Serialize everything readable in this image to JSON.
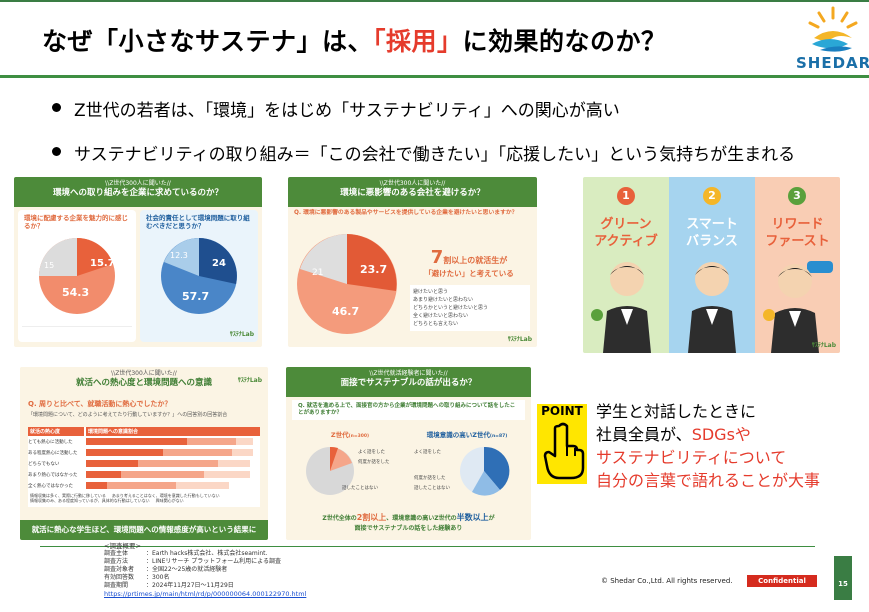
{
  "title": {
    "part1": "なぜ「小さなサステナ」は、",
    "highlight": "「採用」",
    "part2": "に効果的なのか？"
  },
  "logo": {
    "text": "SHEDAR"
  },
  "bullets": [
    "Z世代の若者は、「環境」をはじめ「サステナビリティ」への関心が高い",
    "サステナビリティの取り組み＝「この会社で働きたい」「応援したい」という気持ちが生まれる"
  ],
  "panel1": {
    "kicker": "\\\\Z世代300人に聞いた//",
    "title": "環境への取り組みを企業に求めているのか？",
    "left_q": "環境に配慮する企業を魅力的に感じるか？",
    "right_q": "社会的責任として環境問題に取り組むべきだと思うか？",
    "left_values": [
      "15.7",
      "54.3",
      "15"
    ],
    "right_values": [
      "24",
      "57.7",
      "12.3"
    ],
    "brand": "ｻｽﾃﾅLab"
  },
  "panel2": {
    "kicker": "\\\\Z世代300人に聞いた//",
    "title": "環境に悪影響のある会社を避けるか？",
    "question": "Q. 環境に悪影響のある製品やサービスを提供している企業を避けたいと思いますか？",
    "callout_num": "7",
    "callout_a": "割以上の就活生が",
    "callout_b": "「避けたい」と考えている",
    "values": [
      "23.7",
      "46.7",
      "21"
    ],
    "legend": [
      "避けたいと思う",
      "あまり避けたいと思わない",
      "どちらかというと避けたいと思う",
      "全く避けたいと思わない",
      "どちらとも言えない"
    ],
    "brand": "ｻｽﾃﾅLab"
  },
  "panel3": {
    "cards": [
      {
        "num": "1",
        "line1": "グリーン",
        "line2": "アクティブ"
      },
      {
        "num": "2",
        "line1": "スマート",
        "line2": "バランス"
      },
      {
        "num": "3",
        "line1": "リワード",
        "line2": "ファースト"
      }
    ],
    "brand": "ｻｽﾃﾅLab"
  },
  "panel4": {
    "kicker": "\\\\Z世代300人に聞いた//",
    "title": "就活への熱心度と環境問題への意識",
    "question": "Q. 周りと比べて、就職活動に熱心でしたか？",
    "sub": "「環境問題について、どのように考えてたり行動していますか？」への回答別の回答割合",
    "col_a": "就活の熱心度",
    "col_b": "環境問題への意識割合",
    "rows": [
      "とても熱心に活動した",
      "ある程度熱心に活動した",
      "どちらでもない",
      "あまり熱心ではなかった",
      "全く熱心ではなかった"
    ],
    "legend": [
      "情報収集は多く、実際に行動に移している",
      "あまり考えることはなく、環境を意識した行動もしていない",
      "情報収集のみ、ある程度知っているが、具体的な行動はしていない",
      "興味関心がない"
    ],
    "footer": "就活に熱心な学生ほど、環境問題への情報感度が高いという結果に",
    "brand": "ｻｽﾃﾅLab"
  },
  "panel5": {
    "kicker": "\\\\Z世代就活経験者に聞いた//",
    "title": "面接でサステナブルの話が出るか？",
    "question": "Q. 就活を進める上で、面接官の方から企業が環境問題への取り組みについて話をしたことがありますか？",
    "left_label": "Z世代",
    "left_n": "(n=300)",
    "right_label": "環境意識の高いZ世代",
    "right_n": "(n=87)",
    "left_legend": [
      "よく話をした",
      "何度か話をした",
      "話したことはない"
    ],
    "right_legend": [
      "よく話をした",
      "何度か話をした",
      "話したことはない"
    ],
    "footer_a": "Z世代全体の",
    "footer_b": "2割以上",
    "footer_c": "、環境意識の高いZ世代の",
    "footer_d": "半数以上",
    "footer_e": "が",
    "footer_f": "面接でサステナブルの話をした経験あり"
  },
  "point": {
    "label": "POINT",
    "line1": "学生と対話したときに",
    "line2_a": "社員全員が、",
    "line2_b": "SDGsや",
    "line3": "サステナビリティについて",
    "line4": "自分の言葉で語れることが大事"
  },
  "survey": {
    "header": "<調査概要>",
    "rows": [
      {
        "k": "調査主体",
        "v": "：Earth hacks株式会社、株式会社seamint."
      },
      {
        "k": "調査方法",
        "v": "：LINEリサーチ プラットフォーム利用による調査"
      },
      {
        "k": "調査対象者",
        "v": "：全国22～25歳の就活経験者"
      },
      {
        "k": "有効回答数",
        "v": "：300名"
      },
      {
        "k": "調査期間",
        "v": "：2024年11月27日～11月29日"
      }
    ],
    "link": "https://prtimes.jp/main/html/rd/p/000000064.000122970.html"
  },
  "footer": {
    "copyright": "© Shedar Co.,Ltd.   All rights reserved.",
    "confidential": "Confidential",
    "page": "15"
  }
}
